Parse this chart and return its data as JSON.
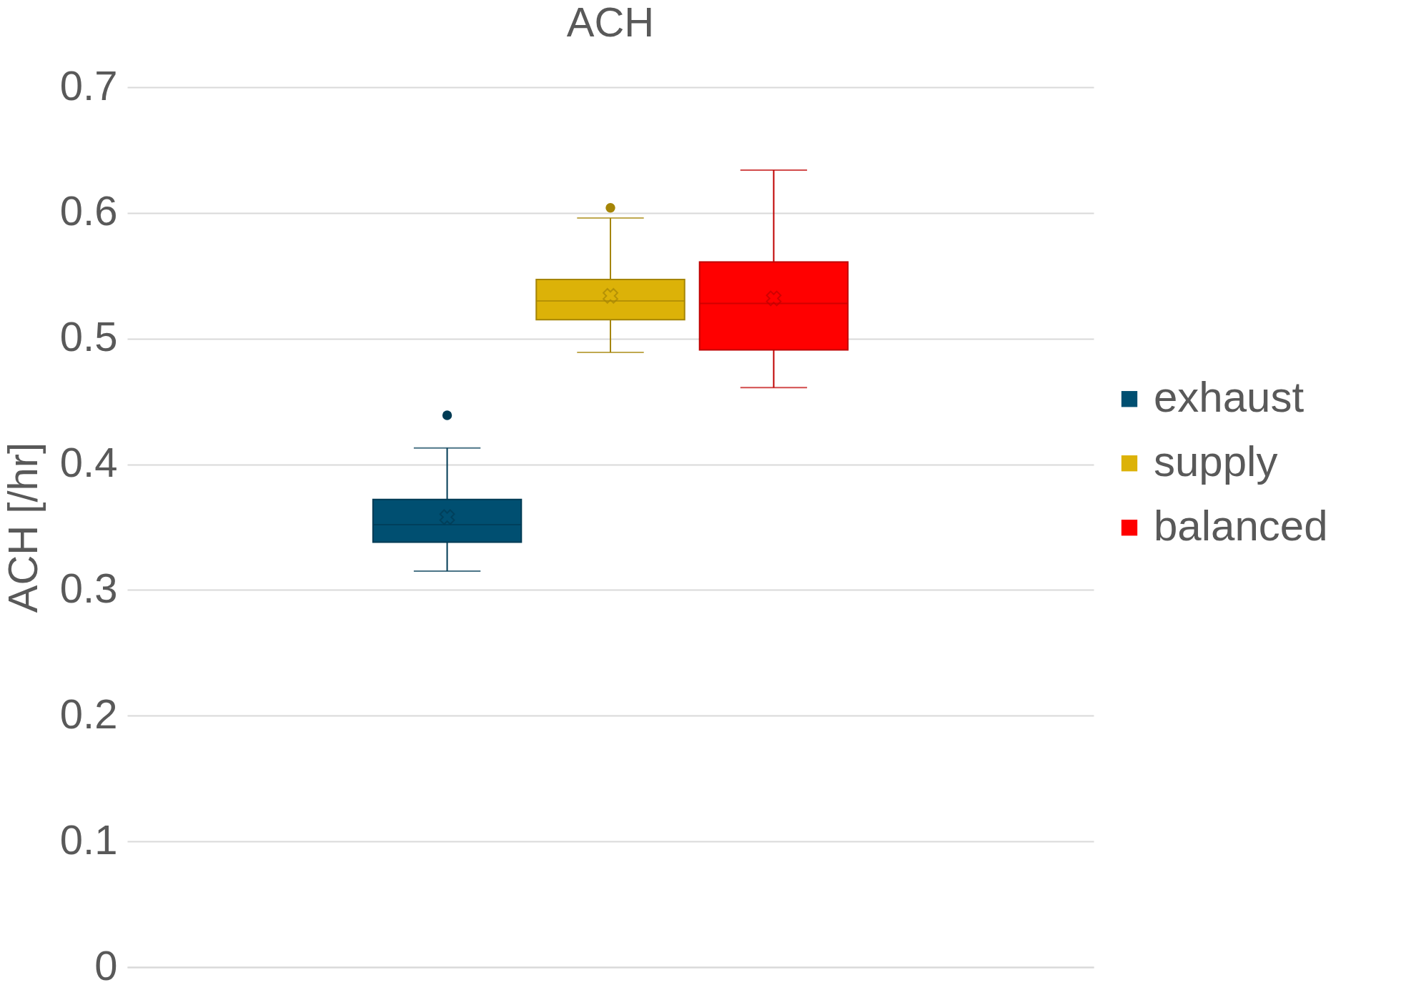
{
  "chart_data": {
    "type": "box",
    "title": "ACH",
    "ylabel": "ACH [/hr]",
    "categories": [
      null
    ],
    "ylim": [
      0,
      0.7
    ],
    "yticks": [
      0,
      0.1,
      0.2,
      0.3,
      0.4,
      0.5,
      0.6,
      0.7
    ],
    "grid": "y",
    "legend": "right",
    "series": [
      {
        "name": "exhaust",
        "color": "#004f71",
        "boxes": [
          {
            "low": 0.315,
            "q1": 0.338,
            "median": 0.352,
            "q3": 0.372,
            "high": 0.413,
            "mean": 0.358,
            "outliers": [
              0.439
            ]
          }
        ]
      },
      {
        "name": "supply",
        "color": "#dcb208",
        "boxes": [
          {
            "low": 0.489,
            "q1": 0.515,
            "median": 0.53,
            "q3": 0.547,
            "high": 0.596,
            "mean": 0.534,
            "outliers": [
              0.604
            ]
          }
        ]
      },
      {
        "name": "balanced",
        "color": "#ff0000",
        "boxes": [
          {
            "low": 0.461,
            "q1": 0.491,
            "median": 0.528,
            "q3": 0.561,
            "high": 0.634,
            "mean": 0.532
          }
        ]
      }
    ]
  }
}
